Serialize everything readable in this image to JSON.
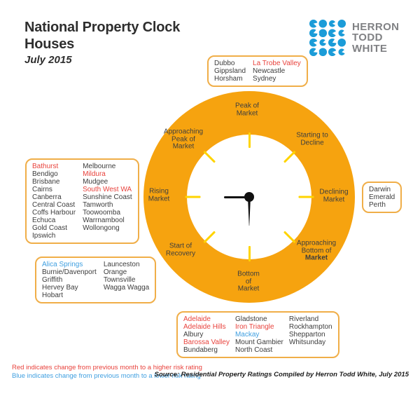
{
  "title": {
    "line1": "National Property Clock",
    "line2": "Houses",
    "date": "July 2015"
  },
  "logo": {
    "lines": [
      "HERRON",
      "TODD",
      "WHITE"
    ],
    "dot_color": "#1B9CD8",
    "text_color": "#808184"
  },
  "clock": {
    "ring_color": "#F6A30F",
    "tick_color": "#FFD400",
    "hand_color": "#101010",
    "time_shown": "9:30",
    "stages": [
      {
        "id": "peak-of-market",
        "label": "Peak of\nMarket"
      },
      {
        "id": "starting-to-decline",
        "label": "Starting to\nDecline"
      },
      {
        "id": "declining-market",
        "label": "Declining\nMarket"
      },
      {
        "id": "approaching-bottom-of-market",
        "label": "Approaching\nBottom of",
        "label_bold": "Market"
      },
      {
        "id": "bottom-of-market",
        "label": "Bottom\nof\nMarket"
      },
      {
        "id": "start-of-recovery",
        "label": "Start of\nRecovery"
      },
      {
        "id": "rising-market",
        "label": "Rising\nMarket"
      },
      {
        "id": "approaching-peak-of-market",
        "label": "Approaching\nPeak of\nMarket"
      }
    ]
  },
  "boxes": {
    "top": {
      "stage": "peak-of-market",
      "columns": [
        [
          {
            "t": "Dubbo"
          },
          {
            "t": "Gippsland"
          },
          {
            "t": "Horsham"
          }
        ],
        [
          {
            "t": "La Trobe Valley",
            "c": "red"
          },
          {
            "t": "Newcastle"
          },
          {
            "t": "Sydney"
          }
        ]
      ]
    },
    "left": {
      "stage": "rising-market",
      "columns": [
        [
          {
            "t": "Bathurst",
            "c": "red"
          },
          {
            "t": "Bendigo"
          },
          {
            "t": "Brisbane"
          },
          {
            "t": "Cairns"
          },
          {
            "t": "Canberra"
          },
          {
            "t": "Central Coast"
          },
          {
            "t": "Coffs Harbour"
          },
          {
            "t": "Echuca"
          },
          {
            "t": "Gold Coast"
          },
          {
            "t": "Ipswich"
          }
        ],
        [
          {
            "t": "Melbourne"
          },
          {
            "t": "Mildura",
            "c": "red"
          },
          {
            "t": "Mudgee"
          },
          {
            "t": "South West WA",
            "c": "red"
          },
          {
            "t": "Sunshine Coast"
          },
          {
            "t": "Tamworth"
          },
          {
            "t": "Toowoomba"
          },
          {
            "t": "Warrnambool"
          },
          {
            "t": "Wollongong"
          }
        ]
      ]
    },
    "right": {
      "stage": "declining-market",
      "columns": [
        [
          {
            "t": "Darwin"
          },
          {
            "t": "Emerald"
          },
          {
            "t": "Perth"
          }
        ]
      ]
    },
    "bottom_left": {
      "stage": "start-of-recovery",
      "columns": [
        [
          {
            "t": "Alica Springs",
            "c": "blue"
          },
          {
            "t": "Burnie/Davenport"
          },
          {
            "t": "Griffith"
          },
          {
            "t": "Hervey Bay"
          },
          {
            "t": "Hobart"
          }
        ],
        [
          {
            "t": "Launceston"
          },
          {
            "t": "Orange"
          },
          {
            "t": "Townsville"
          },
          {
            "t": "Wagga Wagga"
          }
        ]
      ]
    },
    "bottom": {
      "stage": "bottom-of-market",
      "columns": [
        [
          {
            "t": "Adelaide",
            "c": "red"
          },
          {
            "t": "Adelaide Hills",
            "c": "red"
          },
          {
            "t": "Albury"
          },
          {
            "t": "Barossa Valley",
            "c": "red"
          },
          {
            "t": "Bundaberg"
          }
        ],
        [
          {
            "t": "Gladstone"
          },
          {
            "t": "Iron Triangle",
            "c": "red"
          },
          {
            "t": "Mackay",
            "c": "blue"
          },
          {
            "t": "Mount Gambier"
          },
          {
            "t": "North Coast"
          }
        ],
        [
          {
            "t": "Riverland"
          },
          {
            "t": "Rockhampton"
          },
          {
            "t": "Shepparton"
          },
          {
            "t": "Whitsunday"
          }
        ]
      ]
    }
  },
  "legend": {
    "red_note": "Red indicates change from previous month to a higher risk rating",
    "blue_note": "Blue indicates change from previous month to a lower risk rating",
    "red_color": "#E8423C",
    "blue_color": "#3F9FE0"
  },
  "source": "Source: Residential Property Ratings Compiled by Herron Todd White, July 2015"
}
